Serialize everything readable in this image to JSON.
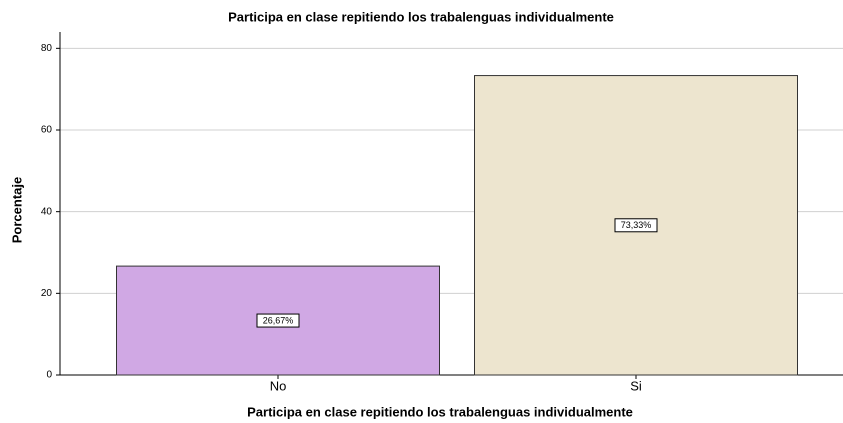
{
  "chart_data": {
    "type": "bar",
    "title": "Participa en clase repitiendo los trabalenguas individualmente",
    "x_label": "Participa en clase repitiendo los trabalenguas individualmente",
    "y_label": "Porcentaje",
    "categories": [
      "No",
      "Si"
    ],
    "values": [
      26.67,
      73.33
    ],
    "value_labels": [
      "26,67%",
      "73,33%"
    ],
    "colors": [
      "#d0a8e4",
      "#ede5cf"
    ],
    "ylim": [
      0,
      84
    ],
    "yticks": [
      0,
      20,
      40,
      60,
      80
    ],
    "grid": true
  }
}
